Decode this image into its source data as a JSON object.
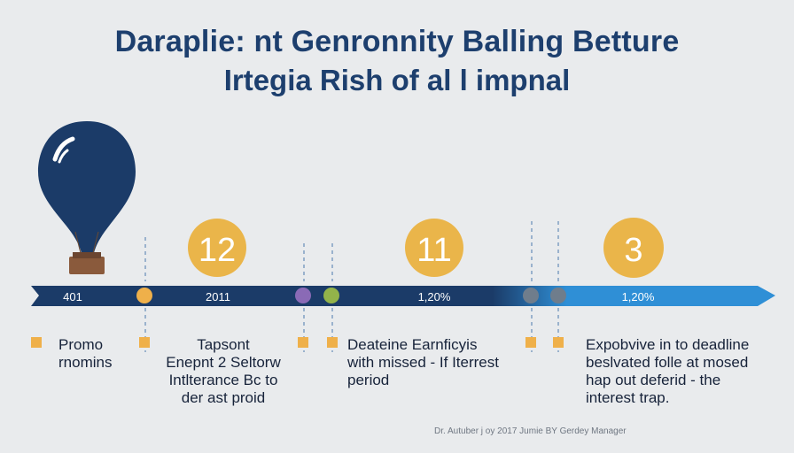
{
  "header": {
    "title_line1": "Daraplie: nt Genronnity Balling Betture",
    "title_line2": "Irtegia Rish of al l impnal"
  },
  "timeline": {
    "bar_labels": [
      "401",
      "2011",
      "1,20%",
      "1,20%"
    ],
    "badges": [
      "12",
      "11",
      "3"
    ],
    "colors": {
      "bar_dark": "#1b3b68",
      "bar_light": "#2f8fd6",
      "badge": "#eab54a",
      "marker_orange": "#efb04a",
      "marker_purple": "#8a6ab6",
      "marker_green": "#93b34a",
      "marker_gray": "#6f7d8c",
      "bulb": "#1b3b68",
      "bulb_basket": "#8a5a3c"
    }
  },
  "notes": [
    {
      "lines": [
        "Promo",
        "rnomins"
      ]
    },
    {
      "lines": [
        "Tapsont",
        "Enepnt 2 Seltorw",
        "Intlterance Bc to",
        "der ast proid"
      ]
    },
    {
      "lines": [
        "Deateine Earnficyis",
        "with missed - If Iterrest",
        "period"
      ]
    },
    {
      "lines": [
        "Expobvive in to deadline",
        "beslvated folle at mosed",
        "hap out deferid - the",
        "interest trap."
      ]
    }
  ],
  "footer": {
    "credit": "Dr. Autuber j oy 2017 Jumie BY Gerdey Manager"
  }
}
